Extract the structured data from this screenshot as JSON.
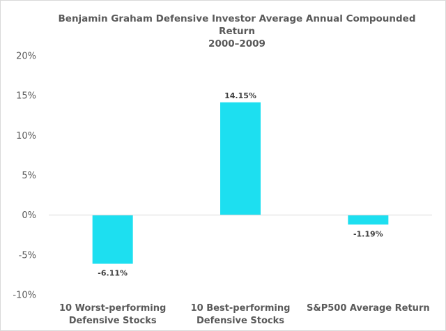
{
  "chart_data": {
    "type": "bar",
    "title_lines": [
      "Benjamin Graham Defensive Investor Average Annual Compounded",
      "Return",
      "2000–2009"
    ],
    "categories": [
      [
        "10 Worst-performing",
        "Defensive Stocks"
      ],
      [
        "10 Best-performing",
        "Defensive Stocks"
      ],
      [
        "S&P500 Average Return"
      ]
    ],
    "values": [
      -6.11,
      14.15,
      -1.19
    ],
    "data_labels": [
      "-6.11%",
      "14.15%",
      "-1.19%"
    ],
    "ylim": [
      -10,
      20
    ],
    "yticks": [
      20,
      15,
      10,
      5,
      0,
      -5,
      -10
    ],
    "ytick_labels": [
      "20%",
      "15%",
      "10%",
      "5%",
      "0%",
      "-5%",
      "-10%"
    ],
    "bar_color": "#1ddff0",
    "axis_color": "#d9d9d9",
    "grid": false
  }
}
